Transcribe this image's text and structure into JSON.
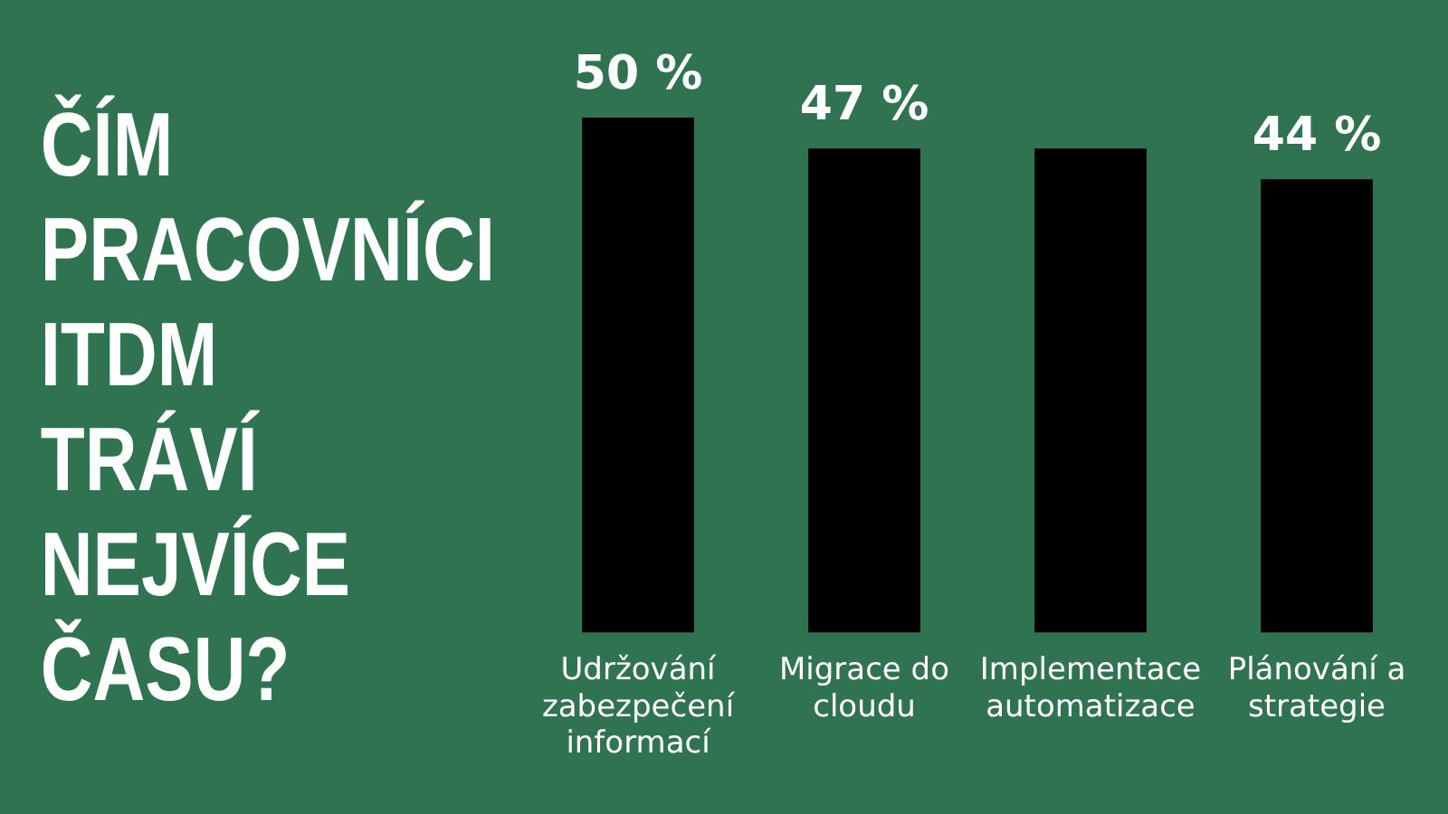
{
  "chart_data": {
    "type": "bar",
    "title": "ČÍM PRACOVNÍCI ITDM TRÁVÍ NEJVÍCE ČASU?",
    "categories": [
      "Udržování zabezpečení informací",
      "Migrace do cloudu",
      "Implementace automatizace",
      "Plánování a strategie"
    ],
    "values": [
      50,
      47,
      47,
      44
    ],
    "color": "#000000",
    "value_labels": [
      "50 %",
      "47 %",
      null,
      "44 %"
    ],
    "grid": false,
    "legend": false,
    "tick_labels": "x"
  }
}
